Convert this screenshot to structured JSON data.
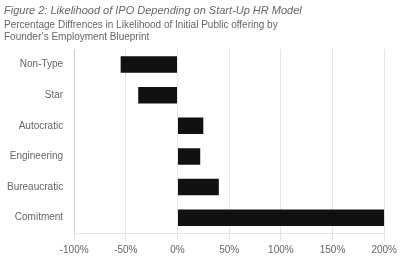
{
  "chart_data": {
    "type": "bar",
    "orientation": "horizontal",
    "title": "Figure 2: Likelihood of IPO Depending on Start-Up HR Model",
    "subtitle": "Percentage Diffrences in Likelihood of Initial Public offering by\nFounder’s Employment Blueprint",
    "categories": [
      "Non-Type",
      "Star",
      "Autocratic",
      "Engineering",
      "Bureaucratic",
      "Comitment"
    ],
    "values": [
      -55,
      -38,
      25,
      22,
      40,
      200
    ],
    "color": "#111111",
    "xlim": [
      -100,
      200
    ],
    "xticks": [
      {
        "value": -100,
        "label": "-100%"
      },
      {
        "value": -50,
        "label": "-50%"
      },
      {
        "value": 0,
        "label": "0%"
      },
      {
        "value": 50,
        "label": "50%"
      },
      {
        "value": 100,
        "label": "100%"
      },
      {
        "value": 150,
        "label": "150%"
      },
      {
        "value": 200,
        "label": "200%"
      }
    ],
    "grid": true
  }
}
